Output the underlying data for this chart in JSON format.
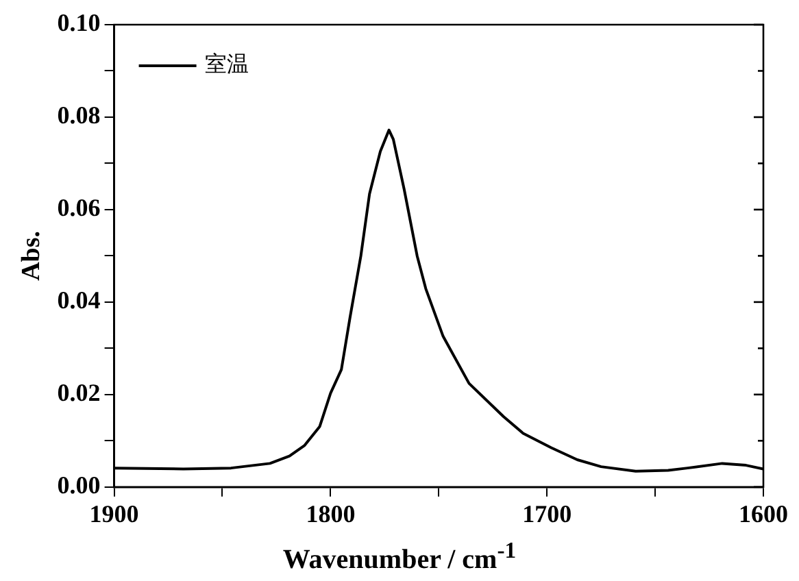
{
  "chart_data": {
    "type": "line",
    "xlabel": "Wavenumber / cm$^{-1}$",
    "ylabel": "Abs.",
    "xlim": [
      1900,
      1600
    ],
    "ylim": [
      0,
      0.1
    ],
    "xticks": [
      1900,
      {
        "value": 1850,
        "label": null
      },
      1800,
      {
        "value": 1750,
        "label": null
      },
      1700,
      {
        "value": 1650,
        "label": null
      },
      1600
    ],
    "yticks": [
      {
        "value": 0,
        "label": "0.00"
      },
      {
        "value": 0.01,
        "label": null
      },
      {
        "value": 0.02,
        "label": "0.02"
      },
      {
        "value": 0.03,
        "label": null
      },
      {
        "value": 0.04,
        "label": "0.04"
      },
      {
        "value": 0.05,
        "label": null
      },
      {
        "value": 0.06,
        "label": "0.06"
      },
      {
        "value": 0.07,
        "label": null
      },
      {
        "value": 0.08,
        "label": "0.08"
      },
      {
        "value": 0.09,
        "label": null
      },
      {
        "value": 0.1,
        "label": "0.10"
      }
    ],
    "legend": "top left",
    "grid": false,
    "marker": "none",
    "line_style": "solid",
    "series": [
      {
        "name": "室温",
        "color": "#000000",
        "x": [
          1900,
          1868,
          1846,
          1828,
          1819,
          1812,
          1805,
          1800,
          1795,
          1791,
          1786,
          1782,
          1777,
          1773,
          1771,
          1766,
          1760,
          1756,
          1748,
          1736,
          1720,
          1711,
          1698,
          1686,
          1675,
          1659,
          1644,
          1635,
          1619,
          1608,
          1600
        ],
        "values": [
          0.0041,
          0.0039,
          0.0041,
          0.0051,
          0.0067,
          0.009,
          0.0131,
          0.0203,
          0.0254,
          0.0367,
          0.05,
          0.0634,
          0.0726,
          0.0772,
          0.0752,
          0.0644,
          0.05,
          0.0429,
          0.0326,
          0.0224,
          0.0152,
          0.0116,
          0.0085,
          0.0059,
          0.0044,
          0.0034,
          0.0036,
          0.0041,
          0.0051,
          0.0047,
          0.0039
        ]
      }
    ]
  }
}
